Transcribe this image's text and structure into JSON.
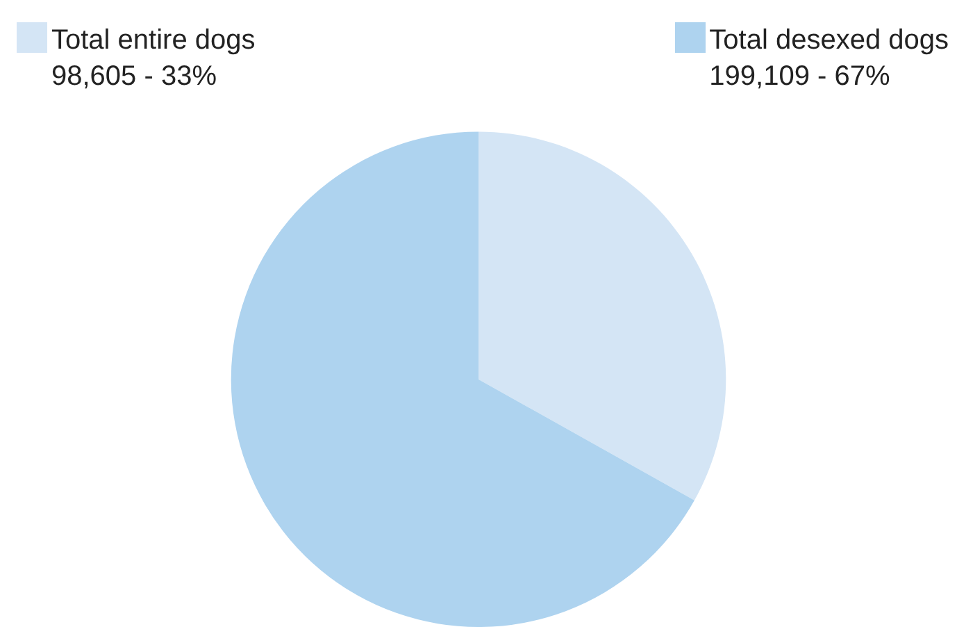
{
  "chart_data": {
    "type": "pie",
    "categories": [
      "Total entire dogs",
      "Total desexed dogs"
    ],
    "values": [
      98605,
      199109
    ],
    "value_labels": [
      "98,605 - 33%",
      "199,109 - 67%"
    ],
    "colors": [
      "#d4e5f5",
      "#aed3ef"
    ],
    "legend": "top"
  }
}
